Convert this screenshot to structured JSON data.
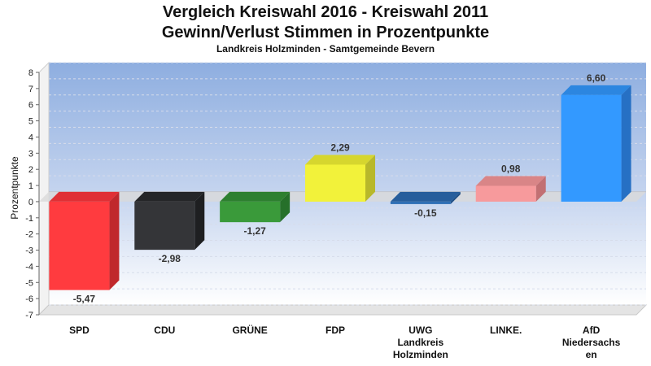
{
  "chart_data": {
    "type": "bar",
    "title": "Vergleich Kreiswahl 2016 - Kreiswahl 2011",
    "title_line2": "Gewinn/Verlust Stimmen in Prozentpunkte",
    "subtitle": "Landkreis Holzminden - Samtgemeinde Bevern",
    "ylabel": "Prozentpunkte",
    "xlabel": "",
    "ylim": [
      -7,
      8
    ],
    "yticks": [
      8,
      7,
      6,
      5,
      4,
      3,
      2,
      1,
      0,
      -1,
      -2,
      -3,
      -4,
      -5,
      -6,
      -7
    ],
    "ytick_labels": [
      "8",
      "7",
      "6",
      "5",
      "4",
      "3",
      "2",
      "1",
      "0",
      "-1",
      "-2",
      "-3",
      "-4",
      "-5",
      "-6",
      "-7"
    ],
    "grid": true,
    "categories": [
      [
        "SPD"
      ],
      [
        "CDU"
      ],
      [
        "GRÜNE"
      ],
      [
        "FDP"
      ],
      [
        "UWG",
        "Landkreis",
        "Holzminden"
      ],
      [
        "LINKE."
      ],
      [
        "AfD",
        "Niedersachs",
        "en"
      ]
    ],
    "values": [
      -5.47,
      -2.98,
      -1.27,
      2.29,
      -0.15,
      0.98,
      6.6
    ],
    "value_labels": [
      "-5,47",
      "-2,98",
      "-1,27",
      "2,29",
      "-0,15",
      "0,98",
      "6,60"
    ],
    "colors": [
      "#ff3b3f",
      "#343538",
      "#3a9a3a",
      "#f2f23a",
      "#2f6fb5",
      "#f79a9c",
      "#3399ff"
    ],
    "side_colors": [
      "#c0282c",
      "#1e1f21",
      "#26702a",
      "#b8b82a",
      "#1f4f86",
      "#c27073",
      "#2670c4"
    ],
    "top_colors": [
      "#e03035",
      "#252628",
      "#2e8030",
      "#d6d62e",
      "#275e9c",
      "#d98587",
      "#2c86e0"
    ]
  }
}
